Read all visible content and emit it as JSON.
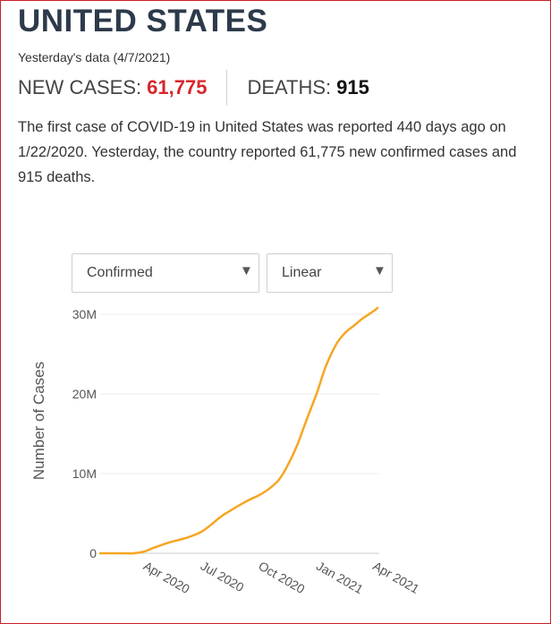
{
  "country": "UNITED STATES",
  "date_note": "Yesterday's data (4/7/2021)",
  "stats": {
    "new_cases_label": "NEW CASES:",
    "new_cases_value": "61,775",
    "deaths_label": "DEATHS:",
    "deaths_value": "915"
  },
  "summary": "The first case of COVID-19 in United States was reported 440 days ago on 1/22/2020. Yesterday, the country reported 61,775 new confirmed cases and 915 deaths.",
  "controls": {
    "metric": "Confirmed",
    "scale": "Linear"
  },
  "colors": {
    "accent": "#d7262b",
    "line": "#f5a623",
    "title": "#2d3a4a"
  },
  "chart_data": {
    "type": "line",
    "xlabel": "",
    "ylabel": "Number of Cases",
    "x_ticks": [
      "Apr 2020",
      "Jul 2020",
      "Oct 2020",
      "Jan 2021",
      "Apr 2021"
    ],
    "y_ticks": [
      "0",
      "10M",
      "20M",
      "30M"
    ],
    "ylim": [
      0,
      30000000
    ],
    "grid": true,
    "series": [
      {
        "values": [
          {
            "x": "2020-01-22",
            "y": 0
          },
          {
            "x": "2020-03-01",
            "y": 100
          },
          {
            "x": "2020-03-15",
            "y": 3000
          },
          {
            "x": "2020-04-01",
            "y": 215000
          },
          {
            "x": "2020-04-15",
            "y": 650000
          },
          {
            "x": "2020-05-01",
            "y": 1100000
          },
          {
            "x": "2020-05-15",
            "y": 1450000
          },
          {
            "x": "2020-06-01",
            "y": 1800000
          },
          {
            "x": "2020-06-15",
            "y": 2150000
          },
          {
            "x": "2020-07-01",
            "y": 2700000
          },
          {
            "x": "2020-07-15",
            "y": 3500000
          },
          {
            "x": "2020-08-01",
            "y": 4600000
          },
          {
            "x": "2020-08-15",
            "y": 5300000
          },
          {
            "x": "2020-09-01",
            "y": 6100000
          },
          {
            "x": "2020-09-15",
            "y": 6700000
          },
          {
            "x": "2020-10-01",
            "y": 7300000
          },
          {
            "x": "2020-10-15",
            "y": 8000000
          },
          {
            "x": "2020-11-01",
            "y": 9200000
          },
          {
            "x": "2020-11-15",
            "y": 11000000
          },
          {
            "x": "2020-12-01",
            "y": 13700000
          },
          {
            "x": "2020-12-15",
            "y": 16700000
          },
          {
            "x": "2021-01-01",
            "y": 20200000
          },
          {
            "x": "2021-01-15",
            "y": 23500000
          },
          {
            "x": "2021-02-01",
            "y": 26300000
          },
          {
            "x": "2021-02-15",
            "y": 27700000
          },
          {
            "x": "2021-03-01",
            "y": 28600000
          },
          {
            "x": "2021-03-15",
            "y": 29500000
          },
          {
            "x": "2021-04-01",
            "y": 30400000
          },
          {
            "x": "2021-04-07",
            "y": 30800000
          }
        ]
      }
    ]
  }
}
